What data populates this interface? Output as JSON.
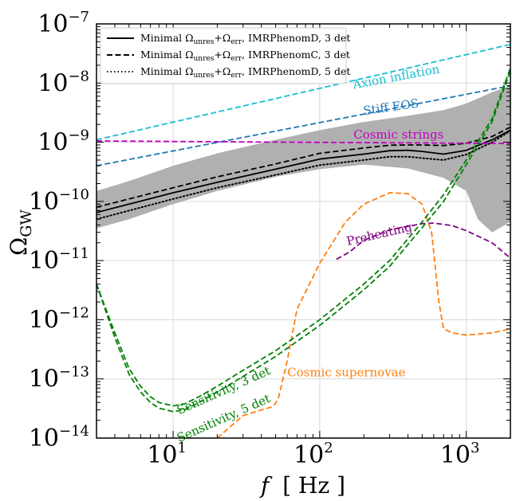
{
  "chart_data": {
    "type": "line",
    "xscale": "log",
    "yscale": "log",
    "xlim": [
      3,
      2000
    ],
    "ylim": [
      1e-14,
      1e-07
    ],
    "xlabel": {
      "var": "f",
      "unit": "[ Hz ]"
    },
    "ylabel": {
      "base": "Ω",
      "sub": "GW"
    },
    "xticks": [
      {
        "base": "10",
        "exp": "1",
        "value": 10
      },
      {
        "base": "10",
        "exp": "2",
        "value": 100
      },
      {
        "base": "10",
        "exp": "3",
        "value": 1000
      }
    ],
    "yticks": [
      {
        "base": "10",
        "exp": "−14",
        "value": 1e-14
      },
      {
        "base": "10",
        "exp": "−13",
        "value": 1e-13
      },
      {
        "base": "10",
        "exp": "−12",
        "value": 1e-12
      },
      {
        "base": "10",
        "exp": "−11",
        "value": 1e-11
      },
      {
        "base": "10",
        "exp": "−10",
        "value": 1e-10
      },
      {
        "base": "10",
        "exp": "−9",
        "value": 1e-09
      },
      {
        "base": "10",
        "exp": "−8",
        "value": 1e-08
      },
      {
        "base": "10",
        "exp": "−7",
        "value": 1e-07
      }
    ],
    "grid": true,
    "legend": {
      "position": "top-left",
      "entries": [
        {
          "style": "solid",
          "prefix": "Minimal Ω",
          "sub1": "unres",
          "mid": "+Ω",
          "sub2": "err",
          "suffix": ", IMRPhenomD, 3 det"
        },
        {
          "style": "dashed",
          "prefix": "Minimal Ω",
          "sub1": "unres",
          "mid": "+Ω",
          "sub2": "err",
          "suffix": ", IMRPhenomC, 3 det"
        },
        {
          "style": "dotted",
          "prefix": "Minimal Ω",
          "sub1": "unres",
          "mid": "+Ω",
          "sub2": "err",
          "suffix": ", IMRPhenomD, 5 det"
        }
      ]
    },
    "band": {
      "color": "#b0b0b0",
      "x": [
        3,
        5,
        10,
        20,
        50,
        100,
        200,
        400,
        700,
        1000,
        1200,
        1500,
        2000
      ],
      "upper": [
        1.5e-10,
        2.2e-10,
        4e-10,
        6.5e-10,
        1.1e-09,
        1.6e-09,
        2.2e-09,
        2.8e-09,
        3.5e-09,
        4.5e-09,
        5.5e-09,
        7e-09,
        9e-09
      ],
      "lower": [
        3.5e-11,
        5e-11,
        9e-11,
        1.5e-10,
        2.6e-10,
        3.5e-10,
        4.2e-10,
        3.6e-10,
        2.5e-10,
        1.5e-10,
        5e-11,
        3e-11,
        4.5e-11
      ]
    },
    "series": [
      {
        "key": "mD3",
        "style": "solid",
        "color": "#000000",
        "x": [
          3,
          5,
          10,
          20,
          50,
          100,
          200,
          300,
          400,
          500,
          700,
          1000,
          1500,
          2000
        ],
        "y": [
          6.5e-11,
          9e-11,
          1.4e-10,
          2.1e-10,
          3.5e-10,
          5.2e-10,
          6.3e-10,
          7.2e-10,
          7.3e-10,
          7e-10,
          6.3e-10,
          7.3e-10,
          1.1e-09,
          1.6e-09
        ]
      },
      {
        "key": "mC3",
        "style": "dashed",
        "color": "#000000",
        "x": [
          3,
          5,
          10,
          20,
          50,
          100,
          200,
          300,
          400,
          500,
          700,
          1000,
          1500,
          2000
        ],
        "y": [
          8e-11,
          1.1e-10,
          1.7e-10,
          2.6e-10,
          4.3e-10,
          6.5e-10,
          8e-10,
          8.9e-10,
          9e-10,
          9e-10,
          8.8e-10,
          9.6e-10,
          1.25e-09,
          1.8e-09
        ]
      },
      {
        "key": "mD5",
        "style": "dotted",
        "color": "#000000",
        "x": [
          3,
          5,
          10,
          20,
          50,
          100,
          200,
          300,
          400,
          500,
          700,
          1000,
          1500,
          2000
        ],
        "y": [
          5e-11,
          7e-11,
          1.1e-10,
          1.7e-10,
          2.8e-10,
          4.1e-10,
          5e-10,
          5.7e-10,
          5.7e-10,
          5.4e-10,
          5e-10,
          6.2e-10,
          1e-09,
          1.55e-09
        ]
      },
      {
        "key": "axion",
        "style": "dashed",
        "color": "#17becf",
        "x": [
          3,
          2000
        ],
        "y": [
          1.1e-09,
          4.5e-08
        ]
      },
      {
        "key": "stiff",
        "style": "dashed",
        "color": "#1f77b4",
        "x": [
          3,
          2000
        ],
        "y": [
          4e-10,
          9e-09
        ]
      },
      {
        "key": "strings",
        "style": "dashed",
        "color": "#c000c0",
        "x": [
          3,
          2000
        ],
        "y": [
          1.05e-09,
          9.5e-10
        ]
      },
      {
        "key": "preheat",
        "style": "dashed",
        "color": "#800080",
        "x": [
          130,
          160,
          200,
          300,
          500,
          600,
          800,
          1000,
          1500,
          2000
        ],
        "y": [
          1.05e-11,
          1.4e-11,
          2.2e-11,
          3.3e-11,
          4.2e-11,
          4.3e-11,
          3.9e-11,
          3.2e-11,
          2e-11,
          1.1e-11
        ]
      },
      {
        "key": "supernovae",
        "style": "dashed",
        "color": "#ff7f0e",
        "x": [
          20,
          30,
          40,
          48,
          52,
          60,
          70,
          100,
          150,
          200,
          300,
          400,
          500,
          580,
          650,
          700,
          800,
          1000,
          1500,
          2000
        ],
        "y": [
          1e-14,
          2.4e-14,
          3e-14,
          3.4e-14,
          4.5e-14,
          2e-13,
          1.5e-12,
          9e-12,
          4.5e-11,
          9e-11,
          1.4e-10,
          1.35e-10,
          9e-11,
          3e-11,
          2e-12,
          7e-13,
          6e-13,
          5.5e-13,
          6e-13,
          7e-13
        ]
      },
      {
        "key": "sens3",
        "style": "dashed",
        "color": "#008000",
        "x": [
          3,
          4,
          5,
          6,
          7,
          8,
          10,
          12,
          15,
          20,
          30,
          50,
          100,
          200,
          300,
          500,
          700,
          1000,
          1500,
          2000
        ],
        "y": [
          4e-12,
          6e-13,
          1.5e-13,
          7.5e-14,
          5e-14,
          4e-14,
          3.5e-14,
          3.8e-14,
          5e-14,
          7.5e-14,
          1.4e-13,
          3e-13,
          1e-12,
          4e-12,
          1e-11,
          4.5e-11,
          1.3e-10,
          5e-10,
          2.5e-09,
          1.8e-08
        ]
      },
      {
        "key": "sens5",
        "style": "dashed",
        "color": "#008000",
        "x": [
          3,
          4,
          5,
          6,
          7,
          8,
          10,
          12,
          15,
          20,
          30,
          50,
          100,
          200,
          300,
          500,
          700,
          1000,
          1500,
          2000
        ],
        "y": [
          4e-12,
          5e-13,
          1.2e-13,
          6e-14,
          4e-14,
          3.2e-14,
          2.8e-14,
          3e-14,
          4e-14,
          6e-14,
          1.1e-13,
          2.4e-13,
          8e-13,
          3.2e-12,
          8e-12,
          3.6e-11,
          1e-10,
          4.2e-10,
          2.2e-09,
          1.6e-08
        ]
      }
    ],
    "annotations": [
      {
        "key": "axion",
        "text": "Axion inflation",
        "color": "#17becf",
        "x": 170,
        "y": 8e-09,
        "angle": -10.5
      },
      {
        "key": "stiff",
        "text": "Stiff EOS",
        "color": "#1f77b4",
        "x": 200,
        "y": 2.9e-09,
        "angle": -8
      },
      {
        "key": "strings",
        "text": "Cosmic strings",
        "color": "#c000c0",
        "x": 170,
        "y": 1.15e-09,
        "angle": 0
      },
      {
        "key": "preheat",
        "text": "Preheating",
        "color": "#800080",
        "x": 155,
        "y": 1.8e-11,
        "angle": -13
      },
      {
        "key": "supernovae",
        "text": "Cosmic supernovae",
        "color": "#ff7f0e",
        "x": 60,
        "y": 1.1e-13,
        "angle": 0
      },
      {
        "key": "sens3label",
        "text": "Sensitivity, 3 det",
        "color": "#008000",
        "x": 11,
        "y": 2.5e-14,
        "angle": -24
      },
      {
        "key": "sens5label",
        "text": "Sensitivity, 5 det",
        "color": "#008000",
        "x": 11,
        "y": 8.5e-15,
        "angle": -24
      }
    ]
  }
}
